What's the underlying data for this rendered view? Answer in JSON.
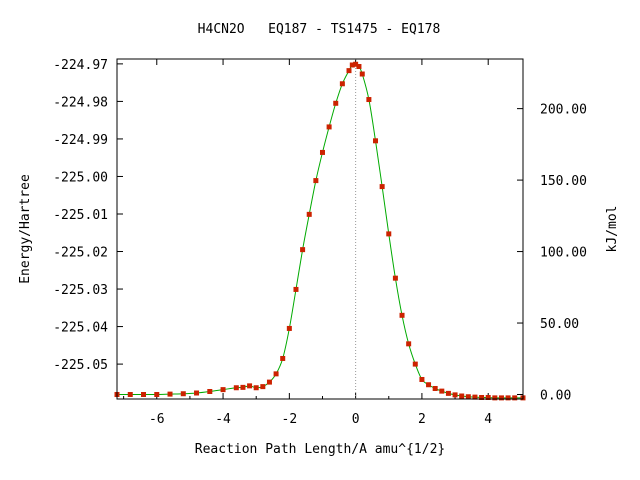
{
  "chart_data": {
    "type": "line",
    "title": "H4CN2O   EQ187 - TS1475 - EQ178",
    "xlabel": "Reaction Path Length/A amu^{1/2}",
    "ylabel": "Energy/Hartree",
    "y2label": "kJ/mol",
    "xlim": [
      -7.2,
      5.05
    ],
    "ylim": [
      -225.0593,
      -224.9687
    ],
    "x_ticks": [
      -6,
      -4,
      -2,
      0,
      2,
      4
    ],
    "x_tick_labels": [
      "-6",
      "-4",
      "-2",
      "0",
      "2",
      "4"
    ],
    "y_ticks": [
      -224.97,
      -224.98,
      -224.99,
      -225.0,
      -225.01,
      -225.02,
      -225.03,
      -225.04,
      -225.05
    ],
    "y_tick_labels": [
      "-224.97",
      "-224.98",
      "-224.99",
      "-225.00",
      "-225.01",
      "-225.02",
      "-225.03",
      "-225.04",
      "-225.05"
    ],
    "y2_ticks": [
      0,
      50,
      100,
      150,
      200
    ],
    "y2_tick_labels": [
      "0.00",
      "50.00",
      "100.00",
      "150.00",
      "200.00"
    ],
    "y2_reference_energy": -225.0581,
    "hartree_to_kjmol": 2625.5,
    "ts_marker_x": 0,
    "colors": {
      "curve": "#00aa00",
      "points": "#cc2200",
      "marker_line": "#999999",
      "frame": "#000000"
    },
    "series": [
      {
        "x": [
          -7.2,
          -6.8,
          -6.4,
          -6.0,
          -5.6,
          -5.2,
          -4.8,
          -4.4,
          -4.0,
          -3.6,
          -3.4,
          -3.2,
          -3.0,
          -2.8,
          -2.6,
          -2.4,
          -2.2,
          -2.0,
          -1.8,
          -1.6,
          -1.4,
          -1.2,
          -1.0,
          -0.8,
          -0.6,
          -0.4,
          -0.2,
          -0.1,
          0.0,
          0.1,
          0.2,
          0.4,
          0.6,
          0.8,
          1.0,
          1.2,
          1.4,
          1.6,
          1.8,
          2.0,
          2.2,
          2.4,
          2.6,
          2.8,
          3.0,
          3.2,
          3.4,
          3.6,
          3.8,
          4.0,
          4.2,
          4.4,
          4.6,
          4.8,
          5.05
        ],
        "y": [
          -225.0581,
          -225.0581,
          -225.0581,
          -225.0581,
          -225.058,
          -225.0579,
          -225.0577,
          -225.0573,
          -225.0568,
          -225.0563,
          -225.0562,
          -225.0558,
          -225.0563,
          -225.056,
          -225.0548,
          -225.0526,
          -225.0485,
          -225.0405,
          -225.0301,
          -225.0195,
          -225.0101,
          -225.0011,
          -224.9936,
          -224.9868,
          -224.9805,
          -224.9753,
          -224.9718,
          -224.9703,
          -224.9701,
          -224.9707,
          -224.9727,
          -224.9795,
          -224.9905,
          -225.0027,
          -225.0153,
          -225.0271,
          -225.037,
          -225.0446,
          -225.05,
          -225.0541,
          -225.0555,
          -225.0565,
          -225.0572,
          -225.0578,
          -225.0582,
          -225.0585,
          -225.0587,
          -225.0588,
          -225.0589,
          -225.0589,
          -225.059,
          -225.059,
          -225.059,
          -225.059,
          -225.059
        ]
      }
    ]
  }
}
